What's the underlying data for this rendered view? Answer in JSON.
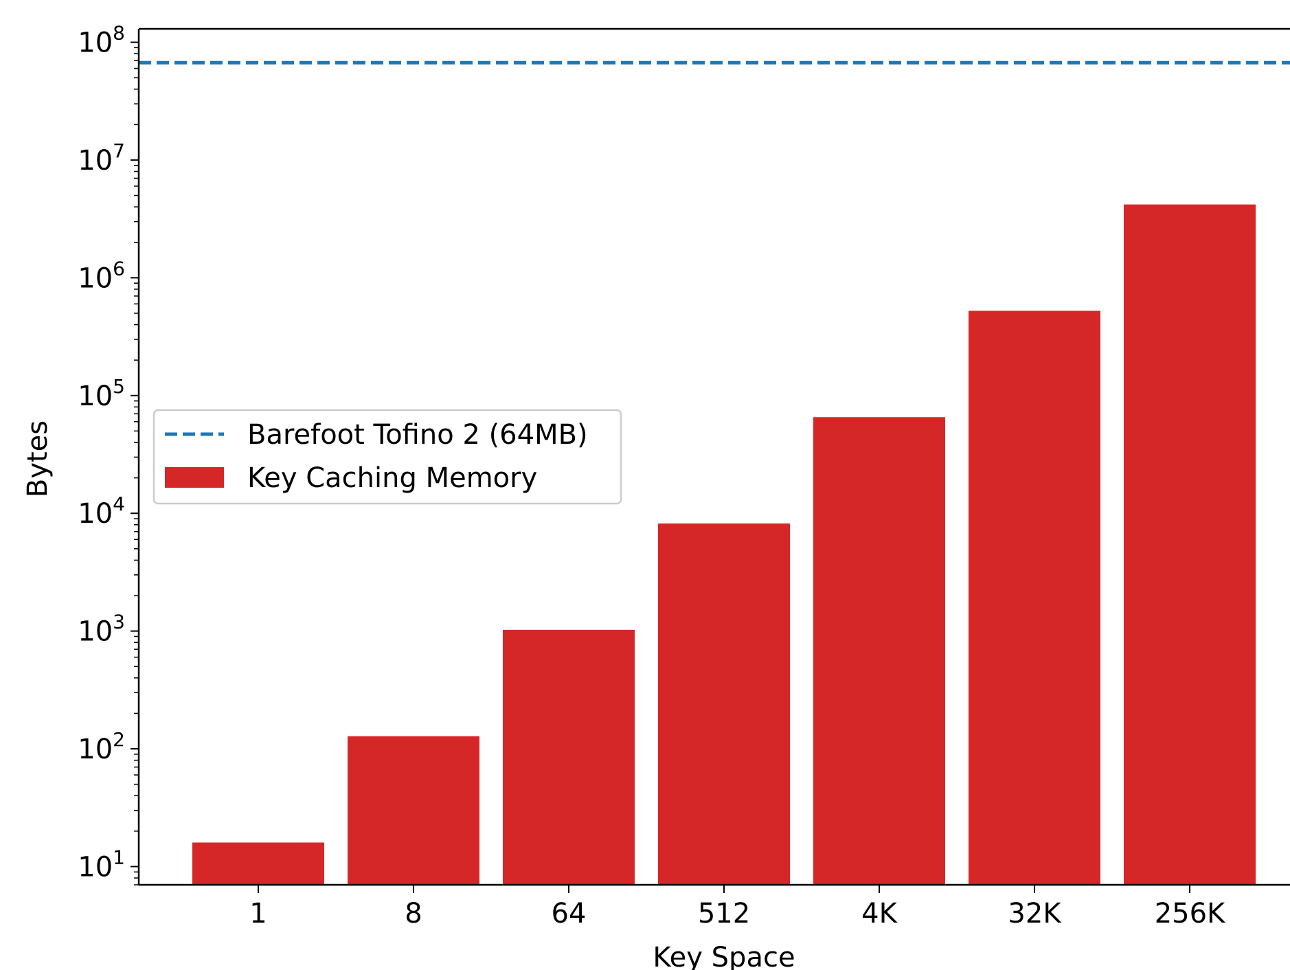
{
  "chart_data": {
    "type": "bar",
    "categories": [
      "1",
      "8",
      "64",
      "512",
      "4K",
      "32K",
      "256K"
    ],
    "series": [
      {
        "name": "Key Caching Memory",
        "color": "#d62728",
        "values": [
          16,
          128,
          1024,
          8192,
          65536,
          524288,
          4194304
        ]
      }
    ],
    "reference_lines": [
      {
        "name": "Barefoot Tofino 2 (64MB)",
        "value": 67108864,
        "color": "#1f77b4",
        "style": "dashed"
      }
    ],
    "xlabel": "Key Space",
    "ylabel": "Bytes",
    "yscale": "log",
    "ylim": [
      7,
      130000000
    ],
    "y_ticks": [
      {
        "base": "10",
        "exp": "1",
        "value": 10
      },
      {
        "base": "10",
        "exp": "2",
        "value": 100
      },
      {
        "base": "10",
        "exp": "3",
        "value": 1000
      },
      {
        "base": "10",
        "exp": "4",
        "value": 10000
      },
      {
        "base": "10",
        "exp": "5",
        "value": 100000
      },
      {
        "base": "10",
        "exp": "6",
        "value": 1000000
      },
      {
        "base": "10",
        "exp": "7",
        "value": 10000000
      },
      {
        "base": "10",
        "exp": "8",
        "value": 100000000
      }
    ],
    "grid": false,
    "legend": {
      "position": "center-left"
    }
  }
}
